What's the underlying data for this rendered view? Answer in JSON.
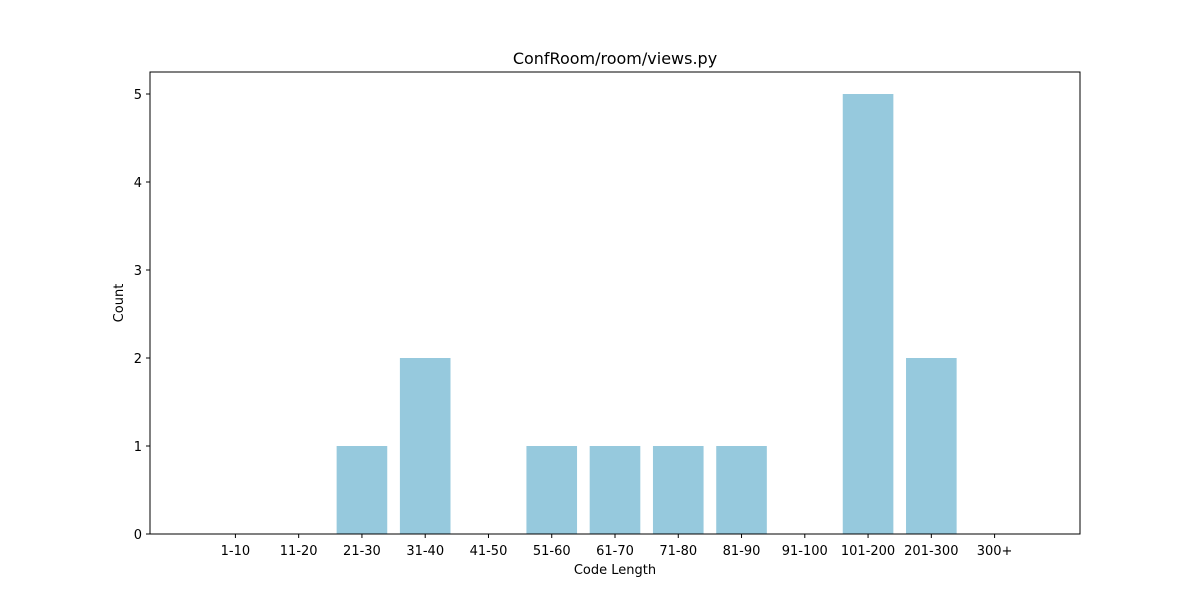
{
  "chart_data": {
    "type": "bar",
    "title": "ConfRoom/room/views.py",
    "xlabel": "Code Length",
    "ylabel": "Count",
    "categories": [
      "1-10",
      "11-20",
      "21-30",
      "31-40",
      "41-50",
      "51-60",
      "61-70",
      "71-80",
      "81-90",
      "91-100",
      "101-200",
      "201-300",
      "300+"
    ],
    "values": [
      0,
      0,
      1,
      2,
      0,
      1,
      1,
      1,
      1,
      0,
      5,
      2,
      0
    ],
    "ylim": [
      0,
      5.25
    ],
    "yticks": [
      0,
      1,
      2,
      3,
      4,
      5
    ],
    "grid": false,
    "bar_color": "#96c9dd"
  }
}
